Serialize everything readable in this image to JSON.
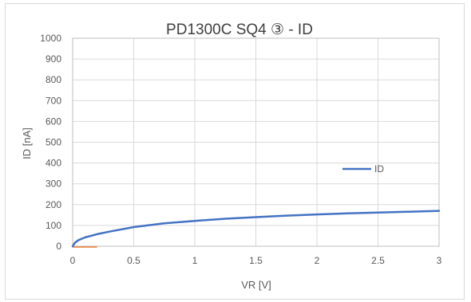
{
  "chart_data": {
    "type": "line",
    "title": "PD1300C SQ4 ③ - ID",
    "xlabel": "VR [V]",
    "ylabel": "ID [nA]",
    "xlim": [
      0,
      3
    ],
    "ylim": [
      0,
      1000
    ],
    "xticks": [
      0,
      0.5,
      1,
      1.5,
      2,
      2.5,
      3
    ],
    "xtick_labels": [
      "0",
      "0.5",
      "1",
      "1.5",
      "2",
      "2.5",
      "3"
    ],
    "yticks": [
      0,
      100,
      200,
      300,
      400,
      500,
      600,
      700,
      800,
      900,
      1000
    ],
    "ytick_labels": [
      "0",
      "100",
      "200",
      "300",
      "400",
      "500",
      "600",
      "700",
      "800",
      "900",
      "1000"
    ],
    "grid": true,
    "legend_position": "right",
    "series": [
      {
        "name": "ID",
        "color": "#4472c4",
        "x": [
          0,
          0.02,
          0.05,
          0.1,
          0.2,
          0.3,
          0.5,
          0.75,
          1.0,
          1.25,
          1.5,
          1.75,
          2.0,
          2.25,
          2.5,
          2.75,
          3.0
        ],
        "y": [
          0,
          18,
          30,
          42,
          58,
          70,
          92,
          110,
          122,
          132,
          140,
          147,
          153,
          158,
          162,
          166,
          170
        ]
      }
    ]
  }
}
